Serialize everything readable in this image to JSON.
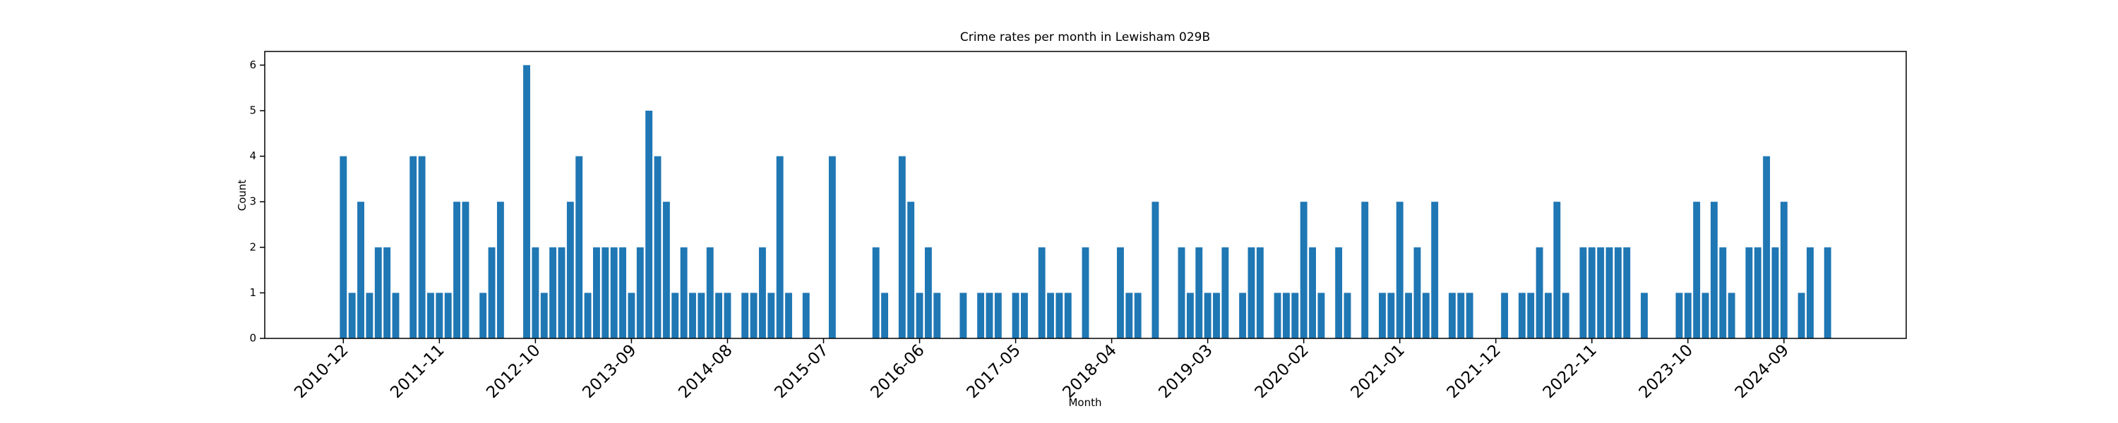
{
  "chart_data": {
    "type": "bar",
    "title": "Crime rates per month in Lewisham 029B",
    "x_label": "Month",
    "y_label": "Count",
    "color": "#1f77b4",
    "x": [
      "2010-12",
      "2011-01",
      "2011-02",
      "2011-03",
      "2011-04",
      "2011-05",
      "2011-06",
      "2011-08",
      "2011-09",
      "2011-10",
      "2011-11",
      "2011-12",
      "2012-01",
      "2012-02",
      "2012-04",
      "2012-05",
      "2012-06",
      "2012-09",
      "2012-10",
      "2012-11",
      "2012-12",
      "2013-01",
      "2013-02",
      "2013-03",
      "2013-04",
      "2013-05",
      "2013-06",
      "2013-07",
      "2013-08",
      "2013-09",
      "2013-10",
      "2013-11",
      "2013-12",
      "2014-01",
      "2014-02",
      "2014-03",
      "2014-04",
      "2014-05",
      "2014-06",
      "2014-07",
      "2014-08",
      "2014-10",
      "2014-11",
      "2014-12",
      "2015-01",
      "2015-02",
      "2015-03",
      "2015-05",
      "2015-08",
      "2016-01",
      "2016-02",
      "2016-04",
      "2016-05",
      "2016-06",
      "2016-07",
      "2016-08",
      "2016-11",
      "2017-01",
      "2017-02",
      "2017-03",
      "2017-05",
      "2017-06",
      "2017-08",
      "2017-09",
      "2017-10",
      "2017-11",
      "2018-01",
      "2018-05",
      "2018-06",
      "2018-07",
      "2018-09",
      "2018-12",
      "2019-01",
      "2019-02",
      "2019-03",
      "2019-04",
      "2019-05",
      "2019-07",
      "2019-08",
      "2019-09",
      "2019-11",
      "2019-12",
      "2020-01",
      "2020-02",
      "2020-03",
      "2020-04",
      "2020-06",
      "2020-07",
      "2020-09",
      "2020-11",
      "2020-12",
      "2021-01",
      "2021-02",
      "2021-03",
      "2021-04",
      "2021-05",
      "2021-07",
      "2021-08",
      "2021-09",
      "2022-01",
      "2022-03",
      "2022-04",
      "2022-05",
      "2022-06",
      "2022-07",
      "2022-08",
      "2022-10",
      "2022-11",
      "2022-12",
      "2023-01",
      "2023-02",
      "2023-03",
      "2023-05",
      "2023-09",
      "2023-10",
      "2023-11",
      "2023-12",
      "2024-01",
      "2024-02",
      "2024-03",
      "2024-05",
      "2024-06",
      "2024-07",
      "2024-08",
      "2024-09",
      "2024-11",
      "2024-12",
      "2025-02"
    ],
    "values": [
      4,
      1,
      3,
      1,
      2,
      2,
      1,
      4,
      4,
      1,
      1,
      1,
      3,
      3,
      1,
      2,
      3,
      6,
      2,
      1,
      2,
      2,
      3,
      4,
      1,
      2,
      2,
      2,
      2,
      1,
      2,
      5,
      4,
      3,
      1,
      2,
      1,
      1,
      2,
      1,
      1,
      1,
      1,
      2,
      1,
      4,
      1,
      1,
      4,
      2,
      1,
      4,
      3,
      1,
      2,
      1,
      1,
      1,
      1,
      1,
      1,
      1,
      2,
      1,
      1,
      1,
      2,
      2,
      1,
      1,
      3,
      2,
      1,
      2,
      1,
      1,
      2,
      1,
      2,
      2,
      1,
      1,
      1,
      3,
      2,
      1,
      2,
      1,
      3,
      1,
      1,
      3,
      1,
      2,
      1,
      3,
      1,
      1,
      1,
      1,
      1,
      1,
      2,
      1,
      3,
      1,
      2,
      2,
      2,
      2,
      2,
      2,
      1,
      1,
      1,
      3,
      1,
      3,
      2,
      1,
      2,
      2,
      4,
      2,
      3,
      1,
      2,
      2
    ],
    "xlim": [
      "2010-03",
      "2025-11"
    ],
    "xticks": [
      "2010-12",
      "2011-11",
      "2012-10",
      "2013-09",
      "2014-08",
      "2015-07",
      "2016-06",
      "2017-05",
      "2018-04",
      "2019-03",
      "2020-02",
      "2021-01",
      "2021-12",
      "2022-11",
      "2023-10",
      "2024-09"
    ],
    "ylim": [
      0,
      6.3
    ],
    "yticks": [
      0,
      1,
      2,
      3,
      4,
      5,
      6
    ]
  }
}
